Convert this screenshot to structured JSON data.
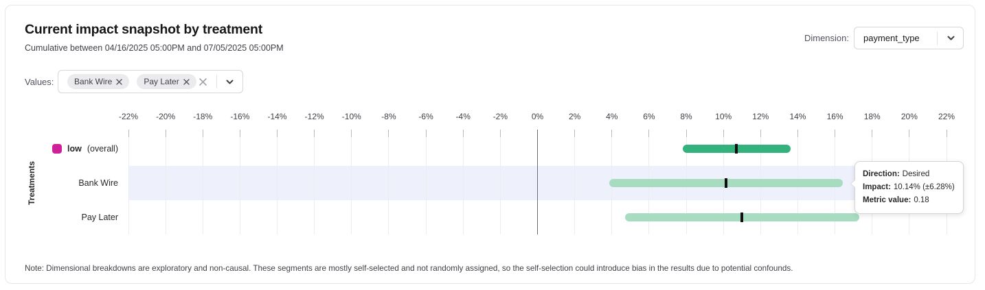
{
  "header": {
    "title": "Current impact snapshot by treatment",
    "subtitle": "Cumulative between 04/16/2025 05:00PM and 07/05/2025 05:00PM"
  },
  "dimension": {
    "label": "Dimension:",
    "selected": "payment_type"
  },
  "values_filter": {
    "label": "Values:",
    "chips": [
      "Bank Wire",
      "Pay Later"
    ]
  },
  "chart_data": {
    "type": "bar",
    "variant": "horizontal-interval",
    "ylabel": "Treatments",
    "xlim": [
      -22,
      22
    ],
    "tick_step": 2,
    "tick_labels": [
      "-22%",
      "-20%",
      "-18%",
      "-16%",
      "-14%",
      "-12%",
      "-10%",
      "-8%",
      "-6%",
      "-4%",
      "-2%",
      "0%",
      "2%",
      "4%",
      "6%",
      "8%",
      "10%",
      "12%",
      "14%",
      "16%",
      "18%",
      "20%",
      "22%"
    ],
    "grid": true,
    "zero_line": true,
    "legend_position": "left-of-rows",
    "rows": [
      {
        "label": "low",
        "suffix": " (overall)",
        "label_bold": true,
        "swatch_color": "#ce2099",
        "impact_pct": 10.7,
        "ci_low_pct": 7.8,
        "ci_high_pct": 13.6,
        "bar_color": "#33b27e",
        "highlighted": false
      },
      {
        "label": "Bank Wire",
        "suffix": "",
        "label_bold": false,
        "impact_pct": 10.14,
        "ci_low_pct": 3.86,
        "ci_high_pct": 16.42,
        "bar_color": "#a8dcc1",
        "highlighted": true
      },
      {
        "label": "Pay Later",
        "suffix": "",
        "label_bold": false,
        "impact_pct": 11.0,
        "ci_low_pct": 4.7,
        "ci_high_pct": 17.3,
        "bar_color": "#a8dcc1",
        "highlighted": false
      }
    ]
  },
  "tooltip": {
    "rows": [
      {
        "label": "Direction:",
        "value": "Desired"
      },
      {
        "label": "Impact:",
        "value": "10.14% (±6.28%)"
      },
      {
        "label": "Metric value:",
        "value": "0.18"
      }
    ]
  },
  "note": "Note: Dimensional breakdowns are exploratory and non-causal. These segments are mostly self-selected and not randomly assigned, so the self-selection could introduce bias in the results due to potential confounds.",
  "colors": {
    "accent_dark_green": "#33b27e",
    "accent_light_green": "#a8dcc1",
    "legend_magenta": "#ce2099",
    "row_highlight": "#eef0fb"
  }
}
